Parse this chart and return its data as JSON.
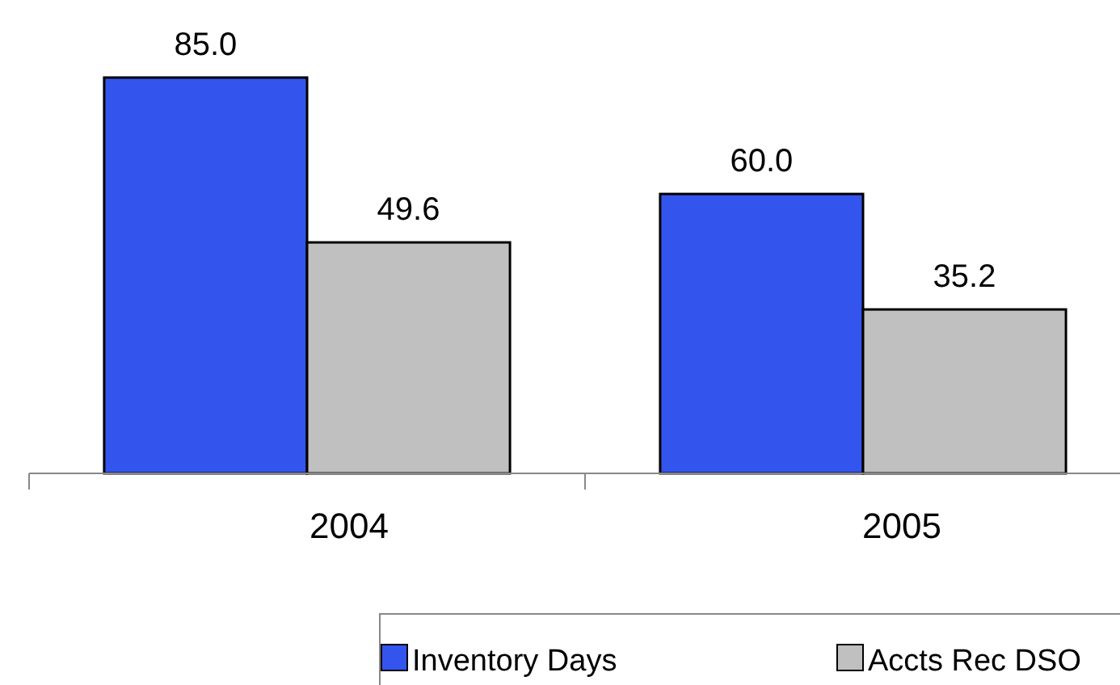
{
  "chart_data": {
    "type": "bar",
    "categories": [
      "2004",
      "2005"
    ],
    "series": [
      {
        "name": "Inventory Days",
        "color": "#3355ee",
        "values": [
          85.0,
          60.0
        ],
        "value_labels": [
          "85.0",
          "60.0"
        ]
      },
      {
        "name": "Accts Rec DSO",
        "color": "#c0c0c0",
        "values": [
          49.6,
          35.2
        ],
        "value_labels": [
          "49.6",
          "35.2"
        ]
      }
    ],
    "legend": "bottom",
    "grid": false
  }
}
